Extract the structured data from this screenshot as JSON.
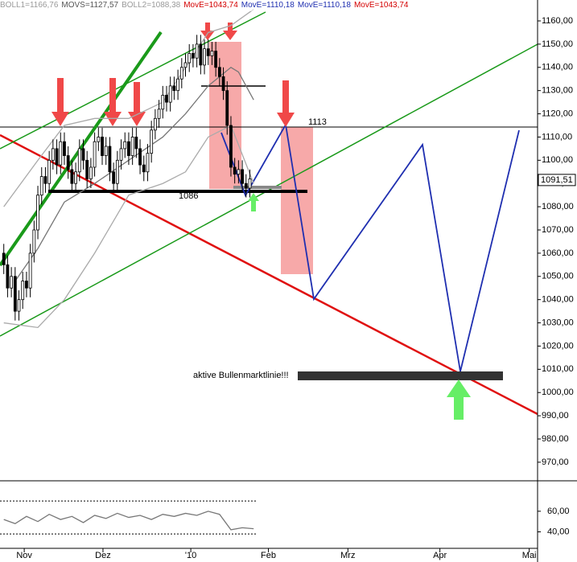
{
  "chart_data": {
    "type": "candlestick",
    "header_labels": [
      {
        "text": "BOLL1=1166,76",
        "color": "#999999"
      },
      {
        "text": "MOVS=1127,57",
        "color": "#555555"
      },
      {
        "text": "BOLL2=1088,38",
        "color": "#999999"
      },
      {
        "text": "MovE=1043,74",
        "color": "#d40000"
      },
      {
        "text": "MovE=1110,18",
        "color": "#1f2fb0"
      },
      {
        "text": "MovE=1110,18",
        "color": "#1f2fb0"
      },
      {
        "text": "MovE=1043,74",
        "color": "#d40000"
      }
    ],
    "xlim": [
      0,
      142
    ],
    "xticks": [
      {
        "value": 6.4,
        "label": "Nov"
      },
      {
        "value": 27.2,
        "label": "Dez"
      },
      {
        "value": 50.4,
        "label": "'10"
      },
      {
        "value": 70.9,
        "label": "Feb"
      },
      {
        "value": 91.9,
        "label": "Mrz"
      },
      {
        "value": 116.2,
        "label": "Apr"
      },
      {
        "value": 139.8,
        "label": "Mai"
      }
    ],
    "ylim": [
      962,
      1169
    ],
    "yticks": [
      {
        "value": 970,
        "label": "970,00"
      },
      {
        "value": 980,
        "label": "980,00"
      },
      {
        "value": 990,
        "label": "990,00"
      },
      {
        "value": 1000,
        "label": "1000,00"
      },
      {
        "value": 1010,
        "label": "1010,00"
      },
      {
        "value": 1020,
        "label": "1020,00"
      },
      {
        "value": 1030,
        "label": "1030,00"
      },
      {
        "value": 1040,
        "label": "1040,00"
      },
      {
        "value": 1050,
        "label": "1050,00"
      },
      {
        "value": 1060,
        "label": "1060,00"
      },
      {
        "value": 1070,
        "label": "1070,00"
      },
      {
        "value": 1080,
        "label": "1080,00"
      },
      {
        "value": 1090,
        "label": "1090,00"
      },
      {
        "value": 1100,
        "label": "1100,00"
      },
      {
        "value": 1110,
        "label": "1110,00"
      },
      {
        "value": 1120,
        "label": "1120,00"
      },
      {
        "value": 1130,
        "label": "1130,00"
      },
      {
        "value": 1140,
        "label": "1140,00"
      },
      {
        "value": 1150,
        "label": "1150,00"
      },
      {
        "value": 1160,
        "label": "1160,00"
      }
    ],
    "up_color": "#ffffff",
    "down_color": "#000000",
    "x": [
      1,
      2,
      3,
      4,
      5,
      6,
      7,
      8,
      9,
      10,
      11,
      12,
      13,
      14,
      15,
      16,
      17,
      18,
      19,
      20,
      21,
      22,
      23,
      24,
      25,
      26,
      27,
      28,
      29,
      30,
      31,
      32,
      33,
      34,
      35,
      36,
      37,
      38,
      39,
      40,
      41,
      42,
      43,
      44,
      45,
      46,
      47,
      48,
      49,
      50,
      51,
      52,
      53,
      54,
      55,
      56,
      57,
      58,
      59,
      60,
      61,
      62,
      63,
      64,
      65,
      66
    ],
    "open": [
      1060,
      1055,
      1045,
      1050,
      1035,
      1040,
      1048,
      1045,
      1060,
      1070,
      1085,
      1093,
      1090,
      1100,
      1105,
      1098,
      1108,
      1102,
      1096,
      1090,
      1095,
      1105,
      1100,
      1092,
      1097,
      1108,
      1110,
      1102,
      1106,
      1095,
      1090,
      1100,
      1105,
      1108,
      1102,
      1110,
      1105,
      1098,
      1095,
      1103,
      1113,
      1118,
      1122,
      1128,
      1125,
      1132,
      1130,
      1135,
      1140,
      1142,
      1146,
      1144,
      1150,
      1141,
      1148,
      1145,
      1147,
      1140,
      1136,
      1130,
      1115,
      1097,
      1094,
      1096,
      1090,
      1088
    ],
    "high": [
      1064,
      1059,
      1054,
      1054,
      1044,
      1052,
      1052,
      1064,
      1074,
      1089,
      1097,
      1097,
      1104,
      1109,
      1109,
      1112,
      1112,
      1106,
      1100,
      1099,
      1109,
      1109,
      1104,
      1101,
      1112,
      1114,
      1114,
      1110,
      1110,
      1099,
      1104,
      1109,
      1112,
      1112,
      1114,
      1114,
      1109,
      1102,
      1107,
      1117,
      1122,
      1126,
      1132,
      1132,
      1136,
      1136,
      1139,
      1144,
      1146,
      1150,
      1150,
      1154,
      1154,
      1152,
      1152,
      1151,
      1151,
      1144,
      1140,
      1134,
      1119,
      1101,
      1100,
      1100,
      1094,
      1096
    ],
    "low": [
      1051,
      1041,
      1041,
      1031,
      1031,
      1036,
      1041,
      1041,
      1056,
      1066,
      1081,
      1086,
      1086,
      1096,
      1094,
      1094,
      1098,
      1092,
      1086,
      1086,
      1091,
      1096,
      1088,
      1088,
      1093,
      1104,
      1098,
      1098,
      1091,
      1086,
      1086,
      1096,
      1101,
      1098,
      1098,
      1101,
      1094,
      1091,
      1091,
      1099,
      1109,
      1114,
      1118,
      1121,
      1121,
      1126,
      1126,
      1131,
      1136,
      1138,
      1140,
      1140,
      1137,
      1137,
      1141,
      1141,
      1136,
      1132,
      1126,
      1111,
      1093,
      1090,
      1090,
      1086,
      1084,
      1084
    ],
    "close": [
      1055,
      1045,
      1050,
      1035,
      1040,
      1048,
      1045,
      1060,
      1070,
      1085,
      1093,
      1090,
      1100,
      1105,
      1098,
      1108,
      1102,
      1096,
      1090,
      1095,
      1105,
      1100,
      1092,
      1097,
      1108,
      1110,
      1102,
      1106,
      1095,
      1090,
      1100,
      1105,
      1108,
      1102,
      1110,
      1105,
      1098,
      1095,
      1103,
      1113,
      1118,
      1122,
      1128,
      1125,
      1132,
      1130,
      1135,
      1140,
      1142,
      1146,
      1144,
      1150,
      1141,
      1148,
      1145,
      1147,
      1140,
      1136,
      1130,
      1115,
      1097,
      1094,
      1096,
      1090,
      1088,
      1092
    ],
    "lines": [
      {
        "color": "#aaaaaa",
        "x": [
          1,
          10,
          17,
          25,
          34,
          43,
          49,
          55,
          61,
          67
        ],
        "values": [
          1080,
          1100,
          1115,
          1118,
          1118,
          1125,
          1140,
          1155,
          1158,
          1165
        ]
      },
      {
        "color": "#777777",
        "x": [
          4,
          10,
          17,
          25,
          34,
          43,
          49,
          55,
          61,
          63,
          67
        ],
        "values": [
          1048,
          1062,
          1082,
          1090,
          1100,
          1110,
          1120,
          1132,
          1140,
          1138,
          1126
        ]
      },
      {
        "color": "#aaaaaa",
        "x": [
          1,
          10,
          17,
          25,
          34,
          43,
          49,
          55,
          61,
          67
        ],
        "values": [
          1030,
          1028,
          1040,
          1060,
          1085,
          1090,
          1095,
          1110,
          1115,
          1090
        ]
      }
    ],
    "last_price": {
      "value": 1091.51,
      "label": "1091,51"
    },
    "annotations": [
      {
        "text": "1113"
      },
      {
        "text": "1086"
      },
      {
        "text": "aktive Bullenmarktlinie!!!"
      }
    ],
    "indicator": {
      "ylim": [
        24,
        88
      ],
      "yticks": [
        {
          "value": 40,
          "label": "40,00"
        },
        {
          "value": 60,
          "label": "60,00"
        }
      ],
      "levels": [
        70,
        38
      ],
      "color": "#777777",
      "x": [
        1,
        4,
        7,
        10,
        13,
        16,
        19,
        22,
        25,
        28,
        31,
        34,
        37,
        40,
        43,
        46,
        49,
        52,
        55,
        58,
        61,
        64,
        67
      ],
      "values": [
        52,
        48,
        55,
        50,
        57,
        52,
        55,
        49,
        56,
        53,
        58,
        54,
        56,
        52,
        57,
        55,
        58,
        56,
        60,
        57,
        42,
        44,
        43
      ]
    }
  }
}
